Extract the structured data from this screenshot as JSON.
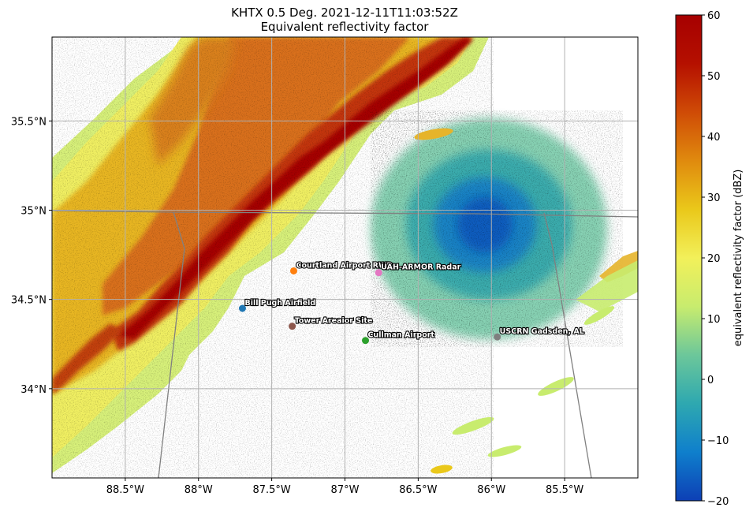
{
  "chart_data": {
    "type": "heatmap",
    "title": "KHTX 0.5 Deg. 2021-12-11T11:03:52Z",
    "subtitle": "Equivalent reflectivity factor",
    "xlim": [
      -89.0,
      -85.0
    ],
    "ylim": [
      33.5,
      35.97
    ],
    "x_ticks": [
      {
        "value": -88.5,
        "label": "88.5°W"
      },
      {
        "value": -88.0,
        "label": "88°W"
      },
      {
        "value": -87.5,
        "label": "87.5°W"
      },
      {
        "value": -87.0,
        "label": "87°W"
      },
      {
        "value": -86.5,
        "label": "86.5°W"
      },
      {
        "value": -86.0,
        "label": "86°W"
      },
      {
        "value": -85.5,
        "label": "85.5°W"
      }
    ],
    "y_ticks": [
      {
        "value": 34.0,
        "label": "34°N"
      },
      {
        "value": 34.5,
        "label": "34.5°N"
      },
      {
        "value": 35.0,
        "label": "35°N"
      },
      {
        "value": 35.5,
        "label": "35.5°N"
      }
    ],
    "grid": true,
    "sites": [
      {
        "name": "Courtland Airport RWP",
        "lon": -87.35,
        "lat": 34.66,
        "color": "#ff7f0e"
      },
      {
        "name": "UAH-ARMOR Radar",
        "lon": -86.77,
        "lat": 34.65,
        "color": "#e377c2"
      },
      {
        "name": "Bill Pugh Airfield",
        "lon": -87.7,
        "lat": 34.45,
        "color": "#1f77b4"
      },
      {
        "name": "Tower Areaior Site",
        "lon": -87.36,
        "lat": 34.35,
        "color": "#8c564b"
      },
      {
        "name": "Cullman Airport",
        "lon": -86.86,
        "lat": 34.27,
        "color": "#2ca02c"
      },
      {
        "name": "USCRN Gadsden, AL",
        "lon": -85.96,
        "lat": 34.29,
        "color": "#7f7f7f"
      }
    ],
    "colorbar": {
      "label": "equivalent reflectivity factor (dBZ)",
      "min": -20,
      "max": 60,
      "ticks": [
        -20,
        -10,
        0,
        10,
        20,
        30,
        40,
        50,
        60
      ],
      "colormap": [
        "#0d3fb5",
        "#0f7fcc",
        "#2ea8b0",
        "#6cc79a",
        "#c8ec6e",
        "#f2f05a",
        "#eac81a",
        "#e08a0e",
        "#cf4b06",
        "#b51000",
        "#a60000"
      ]
    },
    "features": {
      "squall_line": "SW-NE reflectivity band 30-55 dBZ across western portion",
      "clutter": "ground clutter -15 to 5 dBZ centered near radar"
    }
  }
}
